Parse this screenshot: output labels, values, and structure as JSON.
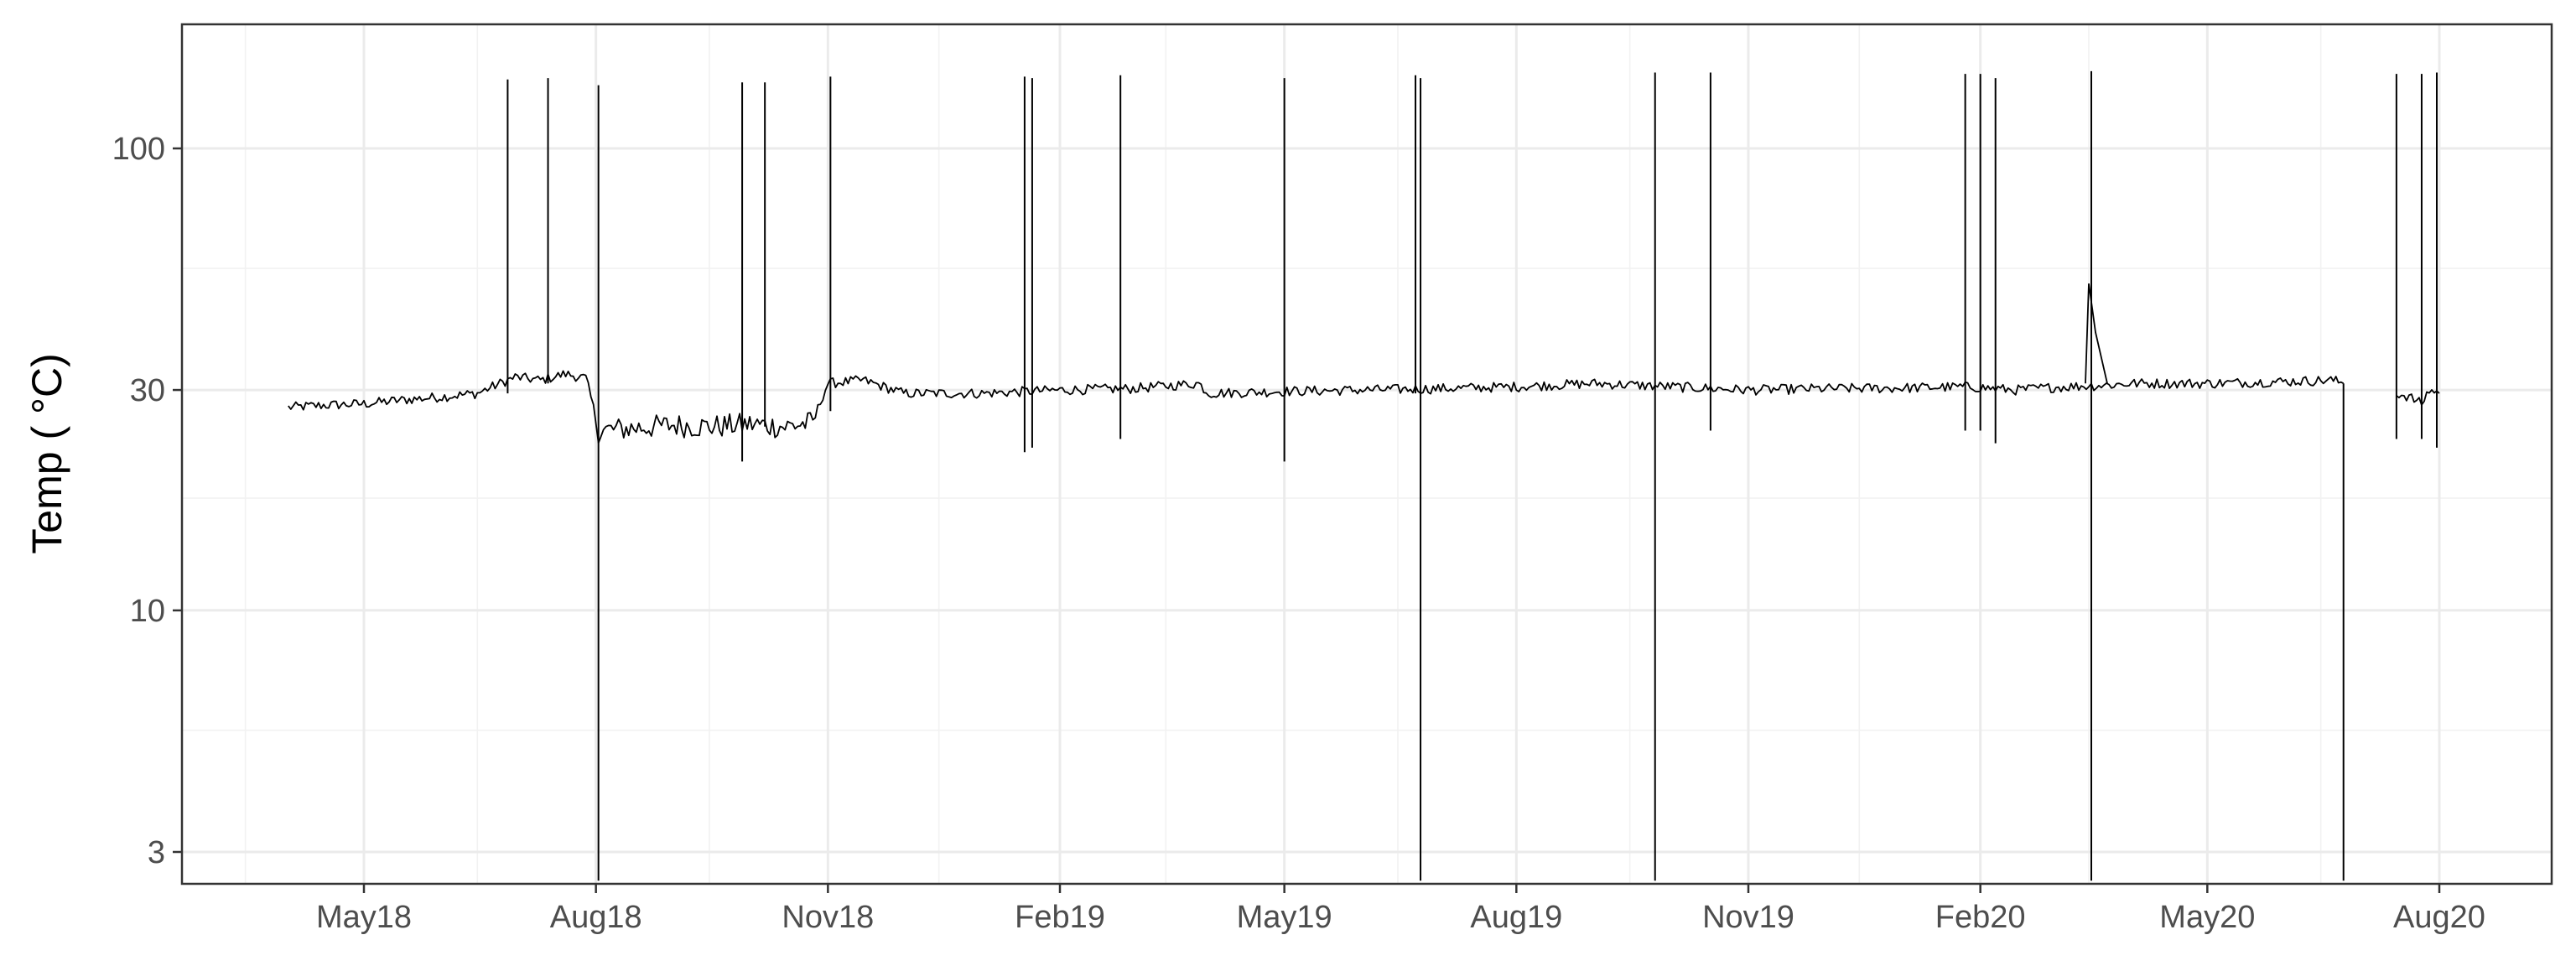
{
  "chart_data": {
    "type": "line",
    "title": "",
    "xlabel": "",
    "ylabel": "Temp ( °C)",
    "y_scale": "log10",
    "ylim": [
      2.6,
      165
    ],
    "xlim": [
      "2018-02-20",
      "2020-09-25"
    ],
    "grid": true,
    "legend": "none",
    "line_color": "#000000",
    "y_ticks": [
      {
        "value": 3,
        "label": "3"
      },
      {
        "value": 10,
        "label": "10"
      },
      {
        "value": 30,
        "label": "30"
      },
      {
        "value": 100,
        "label": "100"
      }
    ],
    "y_minor_ticks": [
      5.5,
      17.5,
      55
    ],
    "x_ticks": [
      {
        "date": "2018-05-01",
        "label": "May18"
      },
      {
        "date": "2018-08-01",
        "label": "Aug18"
      },
      {
        "date": "2018-11-01",
        "label": "Nov18"
      },
      {
        "date": "2019-02-01",
        "label": "Feb19"
      },
      {
        "date": "2019-05-01",
        "label": "May19"
      },
      {
        "date": "2019-08-01",
        "label": "Aug19"
      },
      {
        "date": "2019-11-01",
        "label": "Nov19"
      },
      {
        "date": "2020-02-01",
        "label": "Feb20"
      },
      {
        "date": "2020-05-01",
        "label": "May20"
      },
      {
        "date": "2020-08-01",
        "label": "Aug20"
      }
    ],
    "x_minor_ticks": [
      "2018-03-15",
      "2018-06-15",
      "2018-09-15",
      "2018-12-15",
      "2019-03-15",
      "2019-06-15",
      "2019-09-15",
      "2019-12-15",
      "2020-03-15",
      "2020-06-15",
      "2020-09-15"
    ],
    "series": [
      {
        "segments": [
          {
            "x": [
              "2018-04-01",
              "2018-04-15",
              "2018-05-01",
              "2018-05-15",
              "2018-06-01",
              "2018-06-15",
              "2018-06-30",
              "2018-07-10",
              "2018-07-20",
              "2018-07-28",
              "2018-08-02",
              "2018-08-15",
              "2018-09-01",
              "2018-09-15",
              "2018-10-01",
              "2018-10-15",
              "2018-10-26",
              "2018-11-01",
              "2018-11-15",
              "2018-12-01",
              "2019-01-01",
              "2019-02-01",
              "2019-03-01",
              "2019-03-28",
              "2019-04-01",
              "2019-05-01",
              "2019-06-01",
              "2019-07-01",
              "2019-08-01",
              "2019-09-01",
              "2019-10-01",
              "2019-11-01",
              "2019-12-01",
              "2020-01-01",
              "2020-01-27",
              "2020-02-15",
              "2020-03-01",
              "2020-03-25",
              "2020-04-01",
              "2020-05-01",
              "2020-06-01",
              "2020-06-20",
              "2020-06-24"
            ],
            "y": [
              27.5,
              27.8,
              28.0,
              28.5,
              29.0,
              29.5,
              32.0,
              31.5,
              32.5,
              31.8,
              24.5,
              24.8,
              25.2,
              25.0,
              25.3,
              25.0,
              25.5,
              31.0,
              31.5,
              29.5,
              29.5,
              30.0,
              30.2,
              31.0,
              29.5,
              29.8,
              30.0,
              30.2,
              30.5,
              31.0,
              30.5,
              30.0,
              30.2,
              30.3,
              30.5,
              30.0,
              30.4,
              30.8,
              31.0,
              31.0,
              31.3,
              31.5,
              31.0
            ]
          },
          {
            "x": [
              "2020-07-15",
              "2020-07-20",
              "2020-07-25",
              "2020-07-28",
              "2020-08-01"
            ],
            "y": [
              29.5,
              29.0,
              28.0,
              30.0,
              29.5
            ]
          }
        ],
        "spikes": [
          {
            "date": "2018-06-27",
            "min": 29.5,
            "max": 141
          },
          {
            "date": "2018-07-13",
            "min": 31.0,
            "max": 142
          },
          {
            "date": "2018-08-02",
            "min": 2.6,
            "max": 137
          },
          {
            "date": "2018-09-28",
            "min": 21.0,
            "max": 139
          },
          {
            "date": "2018-10-07",
            "min": 25.0,
            "max": 139
          },
          {
            "date": "2018-11-02",
            "min": 27.0,
            "max": 143
          },
          {
            "date": "2019-01-18",
            "min": 22.0,
            "max": 143
          },
          {
            "date": "2019-01-21",
            "min": 22.5,
            "max": 142
          },
          {
            "date": "2019-02-25",
            "min": 23.5,
            "max": 144
          },
          {
            "date": "2019-05-01",
            "min": 21.0,
            "max": 142
          },
          {
            "date": "2019-06-22",
            "min": 29.5,
            "max": 144
          },
          {
            "date": "2019-06-24",
            "min": 2.6,
            "max": 142
          },
          {
            "date": "2019-09-25",
            "min": 2.6,
            "max": 146
          },
          {
            "date": "2019-10-17",
            "min": 24.5,
            "max": 146
          },
          {
            "date": "2020-01-26",
            "min": 24.5,
            "max": 145
          },
          {
            "date": "2020-02-01",
            "min": 24.5,
            "max": 145
          },
          {
            "date": "2020-02-07",
            "min": 23.0,
            "max": 142
          },
          {
            "date": "2020-03-16",
            "min": 2.6,
            "max": 147
          },
          {
            "date": "2020-06-24",
            "min": 2.6,
            "max": 31.0
          },
          {
            "date": "2020-07-15",
            "min": 23.5,
            "max": 145
          },
          {
            "date": "2020-07-25",
            "min": 23.5,
            "max": 145
          },
          {
            "date": "2020-07-31",
            "min": 22.5,
            "max": 146
          }
        ],
        "annotations": [
          {
            "date": "2020-03-15",
            "value": 51
          }
        ]
      }
    ]
  }
}
